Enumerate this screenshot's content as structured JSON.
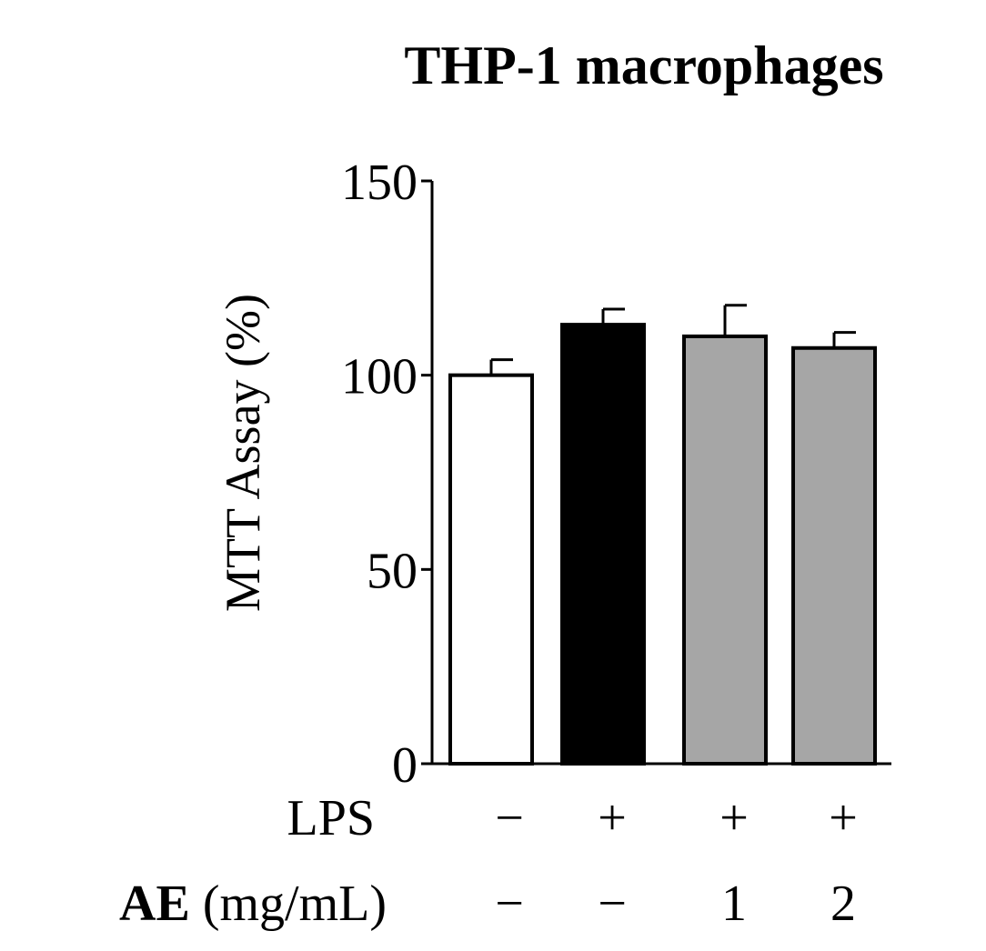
{
  "chart_data": {
    "type": "bar",
    "title": "THP-1 macrophages",
    "ylabel": "MTT Assay (%)",
    "xlabel": "",
    "ylim": [
      0,
      150
    ],
    "yticks": [
      "0",
      "50",
      "100",
      "150"
    ],
    "categories": [
      "LPS − / AE −",
      "LPS + / AE −",
      "LPS + / AE 1",
      "LPS + / AE 2"
    ],
    "values": [
      100,
      113,
      110,
      107
    ],
    "errors": [
      4,
      4,
      8,
      4
    ],
    "bar_colors": [
      "#ffffff",
      "#000000",
      "#a6a6a6",
      "#a6a6a6"
    ],
    "grid": false,
    "treatment_rows": [
      {
        "label": "LPS",
        "label_bold": "",
        "label_rest": "LPS",
        "values": [
          "−",
          "+",
          "+",
          "+"
        ]
      },
      {
        "label": "AE (mg/mL)",
        "label_bold": "AE",
        "label_rest": " (mg/mL)",
        "values": [
          "−",
          "−",
          "1",
          "2"
        ]
      }
    ]
  }
}
